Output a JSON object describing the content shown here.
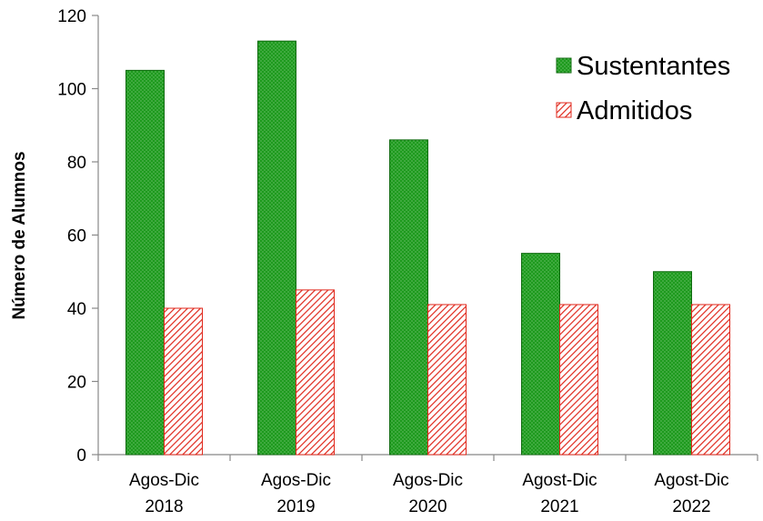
{
  "chart_data": {
    "type": "bar",
    "title": "",
    "xlabel": "",
    "ylabel": "Número de Alumnos",
    "ylim": [
      0,
      120
    ],
    "yticks": [
      0,
      20,
      40,
      60,
      80,
      100,
      120
    ],
    "categories": [
      [
        "Agos-Dic",
        "2018"
      ],
      [
        "Agos-Dic",
        "2019"
      ],
      [
        "Agos-Dic",
        "2020"
      ],
      [
        "Agost-Dic",
        "2021"
      ],
      [
        "Agost-Dic",
        "2022"
      ]
    ],
    "series": [
      {
        "name": "Sustentantes",
        "values": [
          105,
          113,
          86,
          55,
          50
        ],
        "color": "#1e9a1e",
        "border": "#0f6a0f",
        "pattern": "dotted"
      },
      {
        "name": "Admitidos",
        "values": [
          40,
          45,
          41,
          41,
          41
        ],
        "color": "#ffffff",
        "border": "#e0281c",
        "pattern": "diagonal-hatch"
      }
    ],
    "legend": {
      "position": "top-right"
    },
    "grid": false
  }
}
